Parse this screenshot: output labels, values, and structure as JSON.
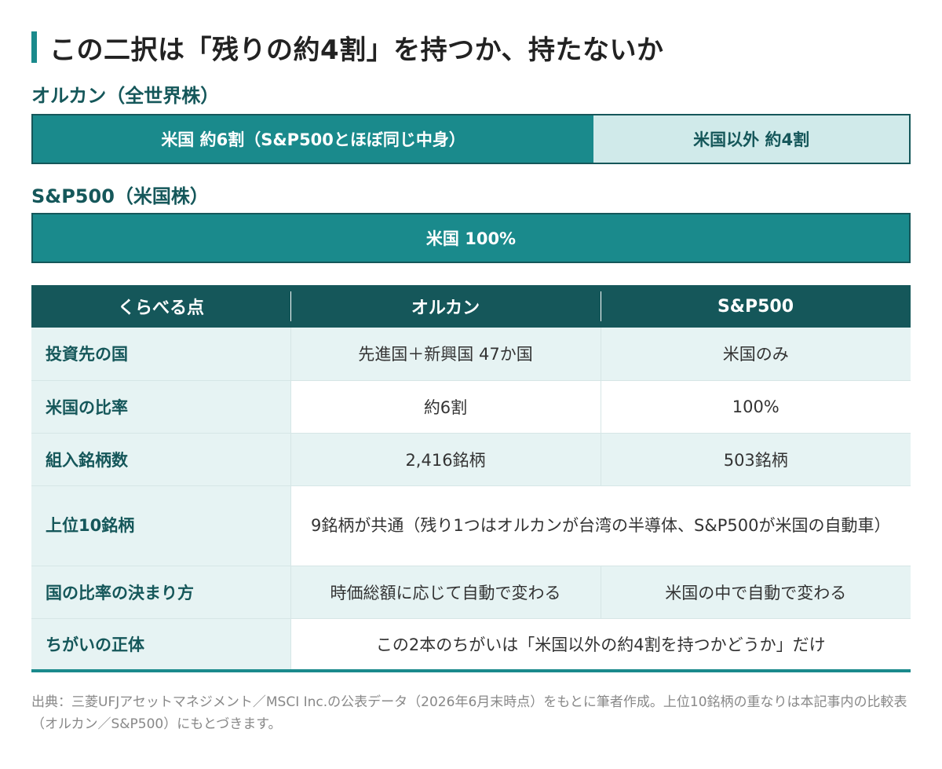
{
  "title": "この二択は「残りの約4割」を持つか、持たないか",
  "allcountry": {
    "label": "オルカン（全世界株）",
    "us_segment": "米国 約6割（S&P500とほぼ同じ中身）",
    "us_fraction": 0.64,
    "ex_segment": "米国以外 約4割"
  },
  "sp500": {
    "label": "S&P500（米国株）",
    "us_segment": "米国 100%",
    "us_fraction": 1.0
  },
  "table": {
    "headers": [
      "くらべる点",
      "オルカン",
      "S&P500"
    ],
    "rows": [
      {
        "label": "投資先の国",
        "orkan": "先進国＋新興国 47か国",
        "sp": "米国のみ"
      },
      {
        "label": "米国の比率",
        "orkan": "約6割",
        "sp": "100%"
      },
      {
        "label": "組入銘柄数",
        "orkan": "2,416銘柄",
        "sp": "503銘柄"
      },
      {
        "label": "上位10銘柄",
        "merged": "9銘柄が共通（残り1つはオルカンが台湾の半導体、S&P500が米国の自動車）"
      },
      {
        "label": "国の比率の決まり方",
        "orkan": "時価総額に応じて自動で変わる",
        "sp": "米国の中で自動で変わる"
      },
      {
        "label": "ちがいの正体",
        "merged": "この2本のちがいは「米国以外の約4割を持つかどうか」だけ"
      }
    ]
  },
  "footnote": "出典：三菱UFJアセットマネジメント／MSCI Inc.の公表データ（2026年6月末時点）をもとに筆者作成。上位10銘柄の重なりは本記事内の比較表（オルカン／S&P500）にもとづきます。",
  "colors": {
    "accent": "#1a8a8c",
    "dark": "#15575a",
    "light": "#d0eaea"
  }
}
